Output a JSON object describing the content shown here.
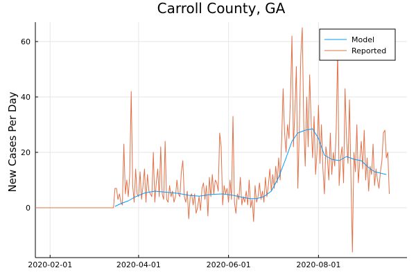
{
  "chart_data": {
    "type": "line",
    "title": "Carroll County, GA",
    "xlabel": "",
    "ylabel": "New Cases Per Day",
    "x_axis": "date",
    "x_range": [
      "2020-01-22",
      "2020-09-30"
    ],
    "ylim": [
      -18,
      67
    ],
    "x_ticks": [
      "2020-02-01",
      "2020-04-01",
      "2020-06-01",
      "2020-08-01"
    ],
    "y_ticks": [
      0,
      20,
      40,
      60
    ],
    "grid": true,
    "legend_position": "top-right",
    "series": [
      {
        "name": "Model",
        "color": "#009AF9",
        "points": [
          [
            "2020-03-16",
            0.5
          ],
          [
            "2020-03-20",
            1.5
          ],
          [
            "2020-03-25",
            2.5
          ],
          [
            "2020-03-30",
            4.0
          ],
          [
            "2020-04-05",
            5.3
          ],
          [
            "2020-04-12",
            6.0
          ],
          [
            "2020-04-20",
            5.6
          ],
          [
            "2020-04-28",
            5.2
          ],
          [
            "2020-05-05",
            4.5
          ],
          [
            "2020-05-12",
            4.2
          ],
          [
            "2020-05-20",
            4.8
          ],
          [
            "2020-05-28",
            5.0
          ],
          [
            "2020-06-04",
            4.5
          ],
          [
            "2020-06-10",
            3.8
          ],
          [
            "2020-06-15",
            3.3
          ],
          [
            "2020-06-20",
            3.3
          ],
          [
            "2020-06-25",
            4.0
          ],
          [
            "2020-06-30",
            6.0
          ],
          [
            "2020-07-05",
            11.0
          ],
          [
            "2020-07-10",
            18.0
          ],
          [
            "2020-07-14",
            24.0
          ],
          [
            "2020-07-18",
            27.0
          ],
          [
            "2020-07-23",
            28.0
          ],
          [
            "2020-07-28",
            28.5
          ],
          [
            "2020-08-01",
            25.0
          ],
          [
            "2020-08-05",
            19.0
          ],
          [
            "2020-08-10",
            17.5
          ],
          [
            "2020-08-15",
            17.0
          ],
          [
            "2020-08-20",
            18.5
          ],
          [
            "2020-08-25",
            17.5
          ],
          [
            "2020-08-30",
            17.0
          ],
          [
            "2020-09-04",
            14.5
          ],
          [
            "2020-09-08",
            13.0
          ],
          [
            "2020-09-12",
            12.5
          ],
          [
            "2020-09-16",
            12.0
          ]
        ]
      },
      {
        "name": "Reported",
        "color": "#E26F46",
        "points": [
          [
            "2020-01-22",
            0
          ],
          [
            "2020-03-15",
            0
          ],
          [
            "2020-03-16",
            7
          ],
          [
            "2020-03-17",
            7
          ],
          [
            "2020-03-18",
            3
          ],
          [
            "2020-03-19",
            5
          ],
          [
            "2020-03-20",
            2
          ],
          [
            "2020-03-21",
            1
          ],
          [
            "2020-03-22",
            23
          ],
          [
            "2020-03-23",
            5
          ],
          [
            "2020-03-24",
            10
          ],
          [
            "2020-03-25",
            4
          ],
          [
            "2020-03-26",
            12
          ],
          [
            "2020-03-27",
            42
          ],
          [
            "2020-03-28",
            8
          ],
          [
            "2020-03-29",
            2
          ],
          [
            "2020-03-30",
            14
          ],
          [
            "2020-03-31",
            5
          ],
          [
            "2020-04-01",
            4
          ],
          [
            "2020-04-02",
            13
          ],
          [
            "2020-04-03",
            3
          ],
          [
            "2020-04-04",
            8
          ],
          [
            "2020-04-05",
            14
          ],
          [
            "2020-04-06",
            2
          ],
          [
            "2020-04-07",
            12
          ],
          [
            "2020-04-08",
            6
          ],
          [
            "2020-04-09",
            5
          ],
          [
            "2020-04-10",
            4
          ],
          [
            "2020-04-11",
            20
          ],
          [
            "2020-04-12",
            2
          ],
          [
            "2020-04-13",
            9
          ],
          [
            "2020-04-14",
            14
          ],
          [
            "2020-04-15",
            4
          ],
          [
            "2020-04-16",
            22
          ],
          [
            "2020-04-17",
            5
          ],
          [
            "2020-04-18",
            3
          ],
          [
            "2020-04-19",
            24
          ],
          [
            "2020-04-20",
            3
          ],
          [
            "2020-04-21",
            2
          ],
          [
            "2020-04-22",
            8
          ],
          [
            "2020-04-23",
            4
          ],
          [
            "2020-04-24",
            6
          ],
          [
            "2020-04-25",
            2
          ],
          [
            "2020-04-26",
            4
          ],
          [
            "2020-04-27",
            10
          ],
          [
            "2020-04-28",
            5
          ],
          [
            "2020-04-29",
            4
          ],
          [
            "2020-04-30",
            13
          ],
          [
            "2020-05-01",
            17
          ],
          [
            "2020-05-02",
            4
          ],
          [
            "2020-05-03",
            2
          ],
          [
            "2020-05-04",
            6
          ],
          [
            "2020-05-05",
            -4
          ],
          [
            "2020-05-06",
            4
          ],
          [
            "2020-05-07",
            5
          ],
          [
            "2020-05-08",
            1
          ],
          [
            "2020-05-09",
            5
          ],
          [
            "2020-05-10",
            -2
          ],
          [
            "2020-05-11",
            0
          ],
          [
            "2020-05-12",
            4
          ],
          [
            "2020-05-13",
            -1
          ],
          [
            "2020-05-14",
            7
          ],
          [
            "2020-05-15",
            9
          ],
          [
            "2020-05-16",
            3
          ],
          [
            "2020-05-17",
            8
          ],
          [
            "2020-05-18",
            -3
          ],
          [
            "2020-05-19",
            11
          ],
          [
            "2020-05-20",
            4
          ],
          [
            "2020-05-21",
            12
          ],
          [
            "2020-05-22",
            5
          ],
          [
            "2020-05-23",
            10
          ],
          [
            "2020-05-24",
            9
          ],
          [
            "2020-05-25",
            6
          ],
          [
            "2020-05-26",
            27
          ],
          [
            "2020-05-27",
            22
          ],
          [
            "2020-05-28",
            1
          ],
          [
            "2020-05-29",
            8
          ],
          [
            "2020-05-30",
            5
          ],
          [
            "2020-05-31",
            7
          ],
          [
            "2020-06-01",
            2
          ],
          [
            "2020-06-02",
            10
          ],
          [
            "2020-06-03",
            3
          ],
          [
            "2020-06-04",
            33
          ],
          [
            "2020-06-05",
            2
          ],
          [
            "2020-06-06",
            -2
          ],
          [
            "2020-06-07",
            5
          ],
          [
            "2020-06-08",
            3
          ],
          [
            "2020-06-09",
            11
          ],
          [
            "2020-06-10",
            1
          ],
          [
            "2020-06-11",
            4
          ],
          [
            "2020-06-12",
            2
          ],
          [
            "2020-06-13",
            6
          ],
          [
            "2020-06-14",
            1
          ],
          [
            "2020-06-15",
            10
          ],
          [
            "2020-06-16",
            0
          ],
          [
            "2020-06-17",
            3
          ],
          [
            "2020-06-18",
            -5
          ],
          [
            "2020-06-19",
            8
          ],
          [
            "2020-06-20",
            2
          ],
          [
            "2020-06-21",
            4
          ],
          [
            "2020-06-22",
            9
          ],
          [
            "2020-06-23",
            3
          ],
          [
            "2020-06-24",
            6
          ],
          [
            "2020-06-25",
            2
          ],
          [
            "2020-06-26",
            11
          ],
          [
            "2020-06-27",
            4
          ],
          [
            "2020-06-28",
            8
          ],
          [
            "2020-06-29",
            14
          ],
          [
            "2020-06-30",
            6
          ],
          [
            "2020-07-01",
            12
          ],
          [
            "2020-07-02",
            7
          ],
          [
            "2020-07-03",
            15
          ],
          [
            "2020-07-04",
            9
          ],
          [
            "2020-07-05",
            18
          ],
          [
            "2020-07-06",
            10
          ],
          [
            "2020-07-07",
            24
          ],
          [
            "2020-07-08",
            43
          ],
          [
            "2020-07-09",
            27
          ],
          [
            "2020-07-10",
            20
          ],
          [
            "2020-07-11",
            30
          ],
          [
            "2020-07-12",
            25
          ],
          [
            "2020-07-13",
            40
          ],
          [
            "2020-07-14",
            62
          ],
          [
            "2020-07-15",
            22
          ],
          [
            "2020-07-16",
            35
          ],
          [
            "2020-07-17",
            51
          ],
          [
            "2020-07-18",
            7
          ],
          [
            "2020-07-19",
            28
          ],
          [
            "2020-07-20",
            55
          ],
          [
            "2020-07-21",
            65
          ],
          [
            "2020-07-22",
            30
          ],
          [
            "2020-07-23",
            15
          ],
          [
            "2020-07-24",
            40
          ],
          [
            "2020-07-25",
            22
          ],
          [
            "2020-07-26",
            48
          ],
          [
            "2020-07-27",
            31
          ],
          [
            "2020-07-28",
            18
          ],
          [
            "2020-07-29",
            33
          ],
          [
            "2020-07-30",
            12
          ],
          [
            "2020-07-31",
            20
          ],
          [
            "2020-08-01",
            37
          ],
          [
            "2020-08-02",
            16
          ],
          [
            "2020-08-03",
            30
          ],
          [
            "2020-08-04",
            14
          ],
          [
            "2020-08-05",
            5
          ],
          [
            "2020-08-06",
            22
          ],
          [
            "2020-08-07",
            18
          ],
          [
            "2020-08-08",
            10
          ],
          [
            "2020-08-09",
            27
          ],
          [
            "2020-08-10",
            12
          ],
          [
            "2020-08-11",
            20
          ],
          [
            "2020-08-12",
            15
          ],
          [
            "2020-08-13",
            28
          ],
          [
            "2020-08-14",
            57
          ],
          [
            "2020-08-15",
            8
          ],
          [
            "2020-08-16",
            18
          ],
          [
            "2020-08-17",
            22
          ],
          [
            "2020-08-18",
            9
          ],
          [
            "2020-08-19",
            43
          ],
          [
            "2020-08-20",
            25
          ],
          [
            "2020-08-21",
            16
          ],
          [
            "2020-08-22",
            39
          ],
          [
            "2020-08-23",
            11
          ],
          [
            "2020-08-24",
            -16
          ],
          [
            "2020-08-25",
            20
          ],
          [
            "2020-08-26",
            13
          ],
          [
            "2020-08-27",
            30
          ],
          [
            "2020-08-28",
            9
          ],
          [
            "2020-08-29",
            17
          ],
          [
            "2020-08-30",
            24
          ],
          [
            "2020-08-31",
            14
          ],
          [
            "2020-09-01",
            28
          ],
          [
            "2020-09-02",
            10
          ],
          [
            "2020-09-03",
            18
          ],
          [
            "2020-09-04",
            6
          ],
          [
            "2020-09-05",
            15
          ],
          [
            "2020-09-06",
            12
          ],
          [
            "2020-09-07",
            23
          ],
          [
            "2020-09-08",
            8
          ],
          [
            "2020-09-09",
            14
          ],
          [
            "2020-09-10",
            10
          ],
          [
            "2020-09-11",
            7
          ],
          [
            "2020-09-12",
            13
          ],
          [
            "2020-09-13",
            17
          ],
          [
            "2020-09-14",
            27
          ],
          [
            "2020-09-15",
            28
          ],
          [
            "2020-09-16",
            18
          ],
          [
            "2020-09-17",
            20
          ],
          [
            "2020-09-18",
            5
          ]
        ]
      }
    ]
  }
}
